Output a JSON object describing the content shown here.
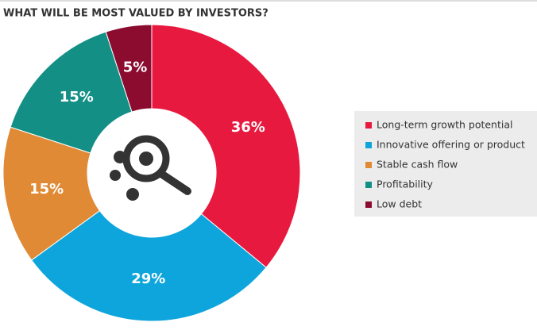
{
  "chart_data": {
    "type": "donut",
    "title": "WHAT WILL BE MOST VALUED BY INVESTORS?",
    "categories": [
      "Long-term growth potential",
      "Innovative offering or product",
      "Stable cash flow",
      "Profitability",
      "Low debt"
    ],
    "values": [
      36,
      29,
      15,
      15,
      5
    ],
    "value_labels": [
      "36%",
      "29%",
      "15%",
      "15%",
      "5%"
    ],
    "colors": [
      "#e8193f",
      "#0ea5dc",
      "#e08a35",
      "#138f86",
      "#8b0c2f"
    ],
    "legend": "right"
  }
}
